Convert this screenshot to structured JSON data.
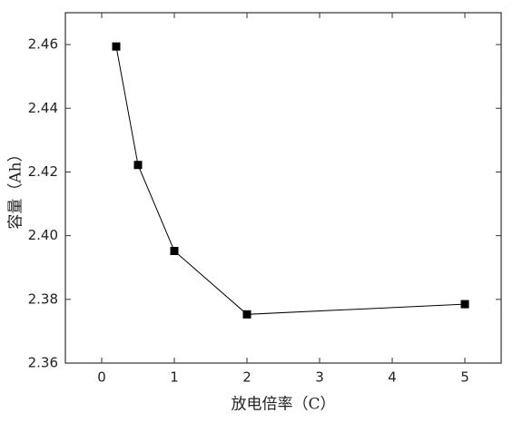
{
  "chart_data": {
    "type": "line",
    "x_label": "放电倍率（C）",
    "y_label": "容量（Ah）",
    "x": [
      0.2,
      0.5,
      1,
      2,
      5
    ],
    "series": [
      {
        "color": "#000000",
        "values": [
          2.4594,
          2.4222,
          2.3952,
          2.3753,
          2.3785
        ]
      }
    ],
    "xlim": [
      -0.5,
      5.5
    ],
    "xticks": [
      0,
      1,
      2,
      3,
      4,
      5
    ],
    "ylim": [
      2.36,
      2.47
    ],
    "yticks": [
      {
        "value": 2.36,
        "label": "2.36"
      },
      {
        "value": 2.38,
        "label": "2.38"
      },
      {
        "value": 2.4,
        "label": "2.40"
      },
      {
        "value": 2.42,
        "label": "2.42"
      },
      {
        "value": 2.44,
        "label": "2.44"
      },
      {
        "value": 2.46,
        "label": "2.46"
      }
    ]
  }
}
